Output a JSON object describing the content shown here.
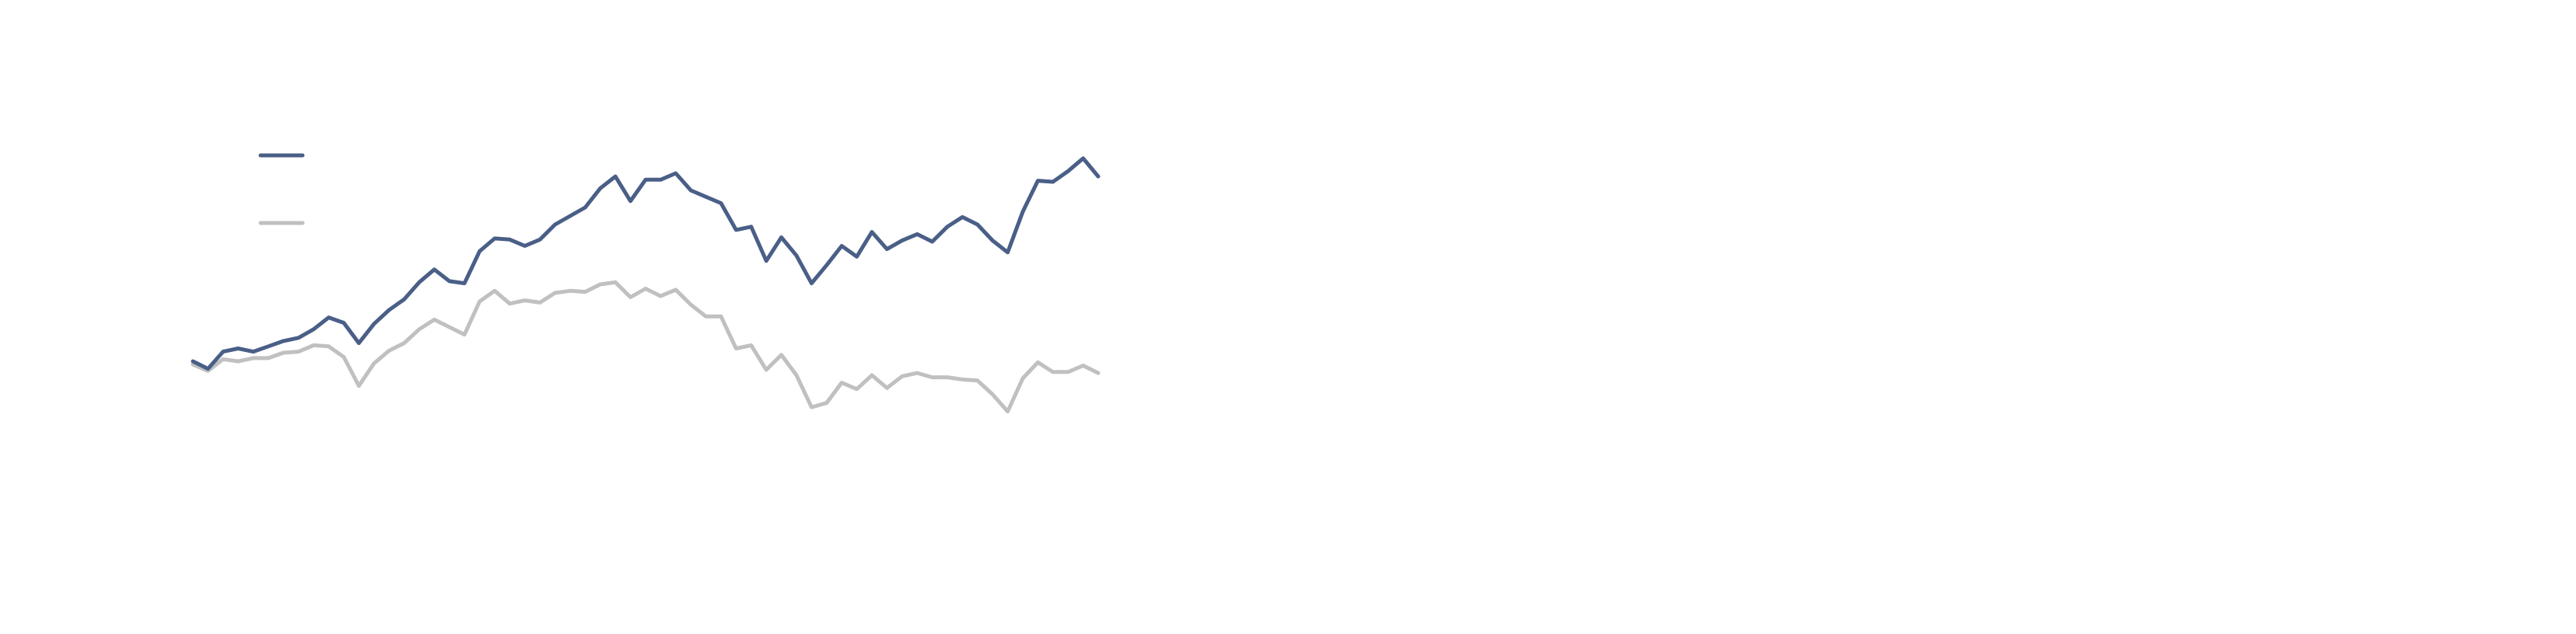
{
  "chart_data": {
    "type": "line",
    "title": "",
    "xlabel": "",
    "ylabel": "",
    "grid": false,
    "legend_placement": "top-left",
    "ylim": [
      -40,
      140
    ],
    "x": [
      0,
      1,
      2,
      3,
      4,
      5,
      6,
      7,
      8,
      9,
      10,
      11,
      12,
      13,
      14,
      15,
      16,
      17,
      18,
      19,
      20,
      21,
      22,
      23,
      24,
      25,
      26,
      27,
      28,
      29,
      30,
      31,
      32,
      33,
      34,
      35,
      36,
      37,
      38,
      39,
      40,
      41,
      42,
      43,
      44,
      45,
      46,
      47,
      48,
      49,
      50,
      51,
      52,
      53,
      54,
      55,
      56,
      57,
      58,
      59,
      60
    ],
    "series": [
      {
        "name": "",
        "color": "#4a5f87",
        "values": [
          0.5,
          -3,
          5,
          6.5,
          5,
          7.5,
          10,
          11.5,
          15.5,
          21,
          18.5,
          9,
          18,
          24.5,
          29.5,
          37.5,
          43.5,
          38,
          37,
          52,
          58,
          57.5,
          54.5,
          57.5,
          64.5,
          68.5,
          72.5,
          81.5,
          87,
          75.5,
          85.5,
          85.5,
          88.5,
          80.5,
          77.5,
          74.5,
          62,
          63.5,
          47.5,
          58.5,
          50,
          37,
          45.5,
          54.5,
          49.5,
          61,
          53,
          57,
          60,
          56.5,
          63.5,
          68,
          64.5,
          57,
          51.5,
          70.5,
          85,
          84.5,
          89.5,
          95.5,
          87
        ]
      },
      {
        "name": "",
        "color": "#c0c0c0",
        "values": [
          -1,
          -4,
          1.5,
          0.5,
          2,
          2,
          4.5,
          5,
          8,
          7.5,
          2.5,
          -11,
          -0.5,
          5.5,
          9,
          15.5,
          20,
          16.5,
          13,
          28.5,
          33.5,
          27.5,
          29,
          28,
          32.5,
          33.5,
          33,
          36.5,
          37.5,
          30.5,
          34.5,
          31,
          34,
          27,
          21.5,
          21.5,
          6.5,
          8,
          -3.5,
          3.5,
          -6,
          -21,
          -19,
          -9.5,
          -12.5,
          -6,
          -12,
          -6.5,
          -5,
          -7,
          -7,
          -8,
          -8.5,
          -15,
          -23,
          -7.5,
          0,
          -4.5,
          -4.5,
          -1.5,
          -5
        ]
      }
    ]
  }
}
